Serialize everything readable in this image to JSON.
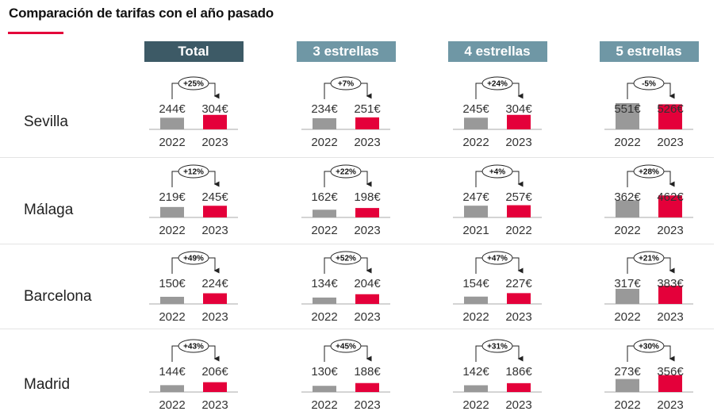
{
  "title": "Comparación de tarifas con el año pasado",
  "colors": {
    "accent": "#e4003a",
    "bar_previous": "#999999",
    "bar_current": "#e4003a",
    "header_total": "#3d5a66",
    "header_category": "#6f97a5",
    "baseline": "#aaaaaa"
  },
  "columns": [
    {
      "label": "Total",
      "color": "#3d5a66"
    },
    {
      "label": "3 estrellas",
      "color": "#6f97a5"
    },
    {
      "label": "4 estrellas",
      "color": "#6f97a5"
    },
    {
      "label": "5 estrellas",
      "color": "#6f97a5"
    }
  ],
  "rows": [
    "Sevilla",
    "Málaga",
    "Barcelona",
    "Madrid"
  ],
  "chart_data": {
    "type": "bar",
    "title": "Comparación de tarifas con el año pasado",
    "cells": [
      [
        {
          "years": [
            "2022",
            "2023"
          ],
          "values": [
            244,
            304
          ],
          "labels": [
            "244€",
            "304€"
          ],
          "change": "+25%"
        },
        {
          "years": [
            "2022",
            "2023"
          ],
          "values": [
            234,
            251
          ],
          "labels": [
            "234€",
            "251€"
          ],
          "change": "+7%"
        },
        {
          "years": [
            "2022",
            "2023"
          ],
          "values": [
            245,
            304
          ],
          "labels": [
            "245€",
            "304€"
          ],
          "change": "+24%"
        },
        {
          "years": [
            "2022",
            "2023"
          ],
          "values": [
            551,
            526
          ],
          "labels": [
            "551€",
            "526€"
          ],
          "change": "-5%"
        }
      ],
      [
        {
          "years": [
            "2022",
            "2023"
          ],
          "values": [
            219,
            245
          ],
          "labels": [
            "219€",
            "245€"
          ],
          "change": "+12%"
        },
        {
          "years": [
            "2022",
            "2023"
          ],
          "values": [
            162,
            198
          ],
          "labels": [
            "162€",
            "198€"
          ],
          "change": "+22%"
        },
        {
          "years": [
            "2021",
            "2022"
          ],
          "values": [
            247,
            257
          ],
          "labels": [
            "247€",
            "257€"
          ],
          "change": "+4%"
        },
        {
          "years": [
            "2022",
            "2023"
          ],
          "values": [
            362,
            462
          ],
          "labels": [
            "362€",
            "462€"
          ],
          "change": "+28%"
        }
      ],
      [
        {
          "years": [
            "2022",
            "2023"
          ],
          "values": [
            150,
            224
          ],
          "labels": [
            "150€",
            "224€"
          ],
          "change": "+49%"
        },
        {
          "years": [
            "2022",
            "2023"
          ],
          "values": [
            134,
            204
          ],
          "labels": [
            "134€",
            "204€"
          ],
          "change": "+52%"
        },
        {
          "years": [
            "2022",
            "2023"
          ],
          "values": [
            154,
            227
          ],
          "labels": [
            "154€",
            "227€"
          ],
          "change": "+47%"
        },
        {
          "years": [
            "2022",
            "2023"
          ],
          "values": [
            317,
            383
          ],
          "labels": [
            "317€",
            "383€"
          ],
          "change": "+21%"
        }
      ],
      [
        {
          "years": [
            "2022",
            "2023"
          ],
          "values": [
            144,
            206
          ],
          "labels": [
            "144€",
            "206€"
          ],
          "change": "+43%"
        },
        {
          "years": [
            "2022",
            "2023"
          ],
          "values": [
            130,
            188
          ],
          "labels": [
            "130€",
            "188€"
          ],
          "change": "+45%"
        },
        {
          "years": [
            "2022",
            "2023"
          ],
          "values": [
            142,
            186
          ],
          "labels": [
            "142€",
            "186€"
          ],
          "change": "+31%"
        },
        {
          "years": [
            "2022",
            "2023"
          ],
          "values": [
            273,
            356
          ],
          "labels": [
            "273€",
            "356€"
          ],
          "change": "+30%"
        }
      ]
    ]
  }
}
